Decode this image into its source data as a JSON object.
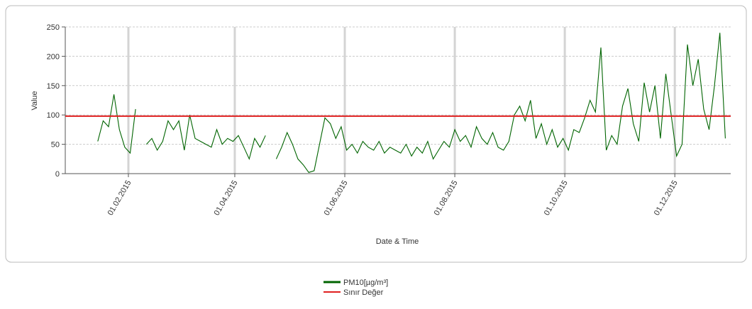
{
  "chart_data": {
    "type": "line",
    "ylabel": "Value",
    "xlabel": "Date & Time",
    "xlim": [
      "2014-12-28",
      "2016-01-01"
    ],
    "xticks": [
      {
        "value": "2015-02-01",
        "label": "01.02.2015"
      },
      {
        "value": "2015-04-01",
        "label": "01.04.2015"
      },
      {
        "value": "2015-06-01",
        "label": "01.06.2015"
      },
      {
        "value": "2015-08-01",
        "label": "01.08.2015"
      },
      {
        "value": "2015-10-01",
        "label": "01.10.2015"
      },
      {
        "value": "2015-12-01",
        "label": "01.12.2015"
      }
    ],
    "ylim": [
      0,
      250
    ],
    "yticks": [
      0,
      50,
      100,
      150,
      200,
      250
    ],
    "grid": true,
    "x": [
      "2015-01-15",
      "2015-01-18",
      "2015-01-21",
      "2015-01-24",
      "2015-01-27",
      "2015-01-30",
      "2015-02-02",
      "2015-02-05",
      "2015-02-08",
      "2015-02-11",
      "2015-02-14",
      "2015-02-17",
      "2015-02-20",
      "2015-02-23",
      "2015-02-26",
      "2015-03-01",
      "2015-03-04",
      "2015-03-07",
      "2015-03-10",
      "2015-03-13",
      "2015-03-16",
      "2015-03-19",
      "2015-03-22",
      "2015-03-25",
      "2015-03-28",
      "2015-03-31",
      "2015-04-03",
      "2015-04-06",
      "2015-04-09",
      "2015-04-12",
      "2015-04-15",
      "2015-04-18",
      "2015-04-21",
      "2015-04-24",
      "2015-04-27",
      "2015-04-30",
      "2015-05-03",
      "2015-05-06",
      "2015-05-09",
      "2015-05-12",
      "2015-05-15",
      "2015-05-18",
      "2015-05-21",
      "2015-05-24",
      "2015-05-27",
      "2015-05-30",
      "2015-06-02",
      "2015-06-05",
      "2015-06-08",
      "2015-06-11",
      "2015-06-14",
      "2015-06-17",
      "2015-06-20",
      "2015-06-23",
      "2015-06-26",
      "2015-06-29",
      "2015-07-02",
      "2015-07-05",
      "2015-07-08",
      "2015-07-11",
      "2015-07-14",
      "2015-07-17",
      "2015-07-20",
      "2015-07-23",
      "2015-07-26",
      "2015-07-29",
      "2015-08-01",
      "2015-08-04",
      "2015-08-07",
      "2015-08-10",
      "2015-08-13",
      "2015-08-16",
      "2015-08-19",
      "2015-08-22",
      "2015-08-25",
      "2015-08-28",
      "2015-08-31",
      "2015-09-03",
      "2015-09-06",
      "2015-09-09",
      "2015-09-12",
      "2015-09-15",
      "2015-09-18",
      "2015-09-21",
      "2015-09-24",
      "2015-09-27",
      "2015-09-30",
      "2015-10-03",
      "2015-10-06",
      "2015-10-09",
      "2015-10-12",
      "2015-10-15",
      "2015-10-18",
      "2015-10-21",
      "2015-10-24",
      "2015-10-27",
      "2015-10-30",
      "2015-11-02",
      "2015-11-05",
      "2015-11-08",
      "2015-11-11",
      "2015-11-14",
      "2015-11-17",
      "2015-11-20",
      "2015-11-23",
      "2015-11-26",
      "2015-11-29",
      "2015-12-02",
      "2015-12-05",
      "2015-12-08",
      "2015-12-11",
      "2015-12-14",
      "2015-12-17",
      "2015-12-20",
      "2015-12-23",
      "2015-12-26",
      "2015-12-29"
    ],
    "series": [
      {
        "name": "PM10[µg/m³]",
        "color": "#006400",
        "values": [
          55,
          90,
          80,
          135,
          75,
          45,
          35,
          110,
          null,
          50,
          60,
          40,
          55,
          90,
          75,
          90,
          40,
          100,
          60,
          55,
          50,
          45,
          75,
          50,
          60,
          55,
          65,
          45,
          25,
          60,
          45,
          65,
          null,
          25,
          45,
          70,
          50,
          25,
          15,
          2,
          5,
          50,
          95,
          85,
          60,
          80,
          40,
          50,
          35,
          55,
          45,
          40,
          55,
          35,
          45,
          40,
          35,
          50,
          30,
          45,
          35,
          55,
          25,
          40,
          55,
          45,
          75,
          55,
          65,
          45,
          80,
          60,
          50,
          70,
          45,
          40,
          55,
          100,
          115,
          90,
          125,
          60,
          85,
          50,
          75,
          45,
          60,
          40,
          75,
          70,
          95,
          125,
          105,
          215,
          40,
          65,
          50,
          115,
          145,
          85,
          55,
          155,
          105,
          150,
          60,
          170,
          100,
          30,
          50,
          220,
          150,
          195,
          110,
          75,
          150,
          240,
          60
        ]
      }
    ],
    "reference_line": {
      "name": "Sınır Değer",
      "value": 98,
      "color": "#e02020"
    }
  }
}
